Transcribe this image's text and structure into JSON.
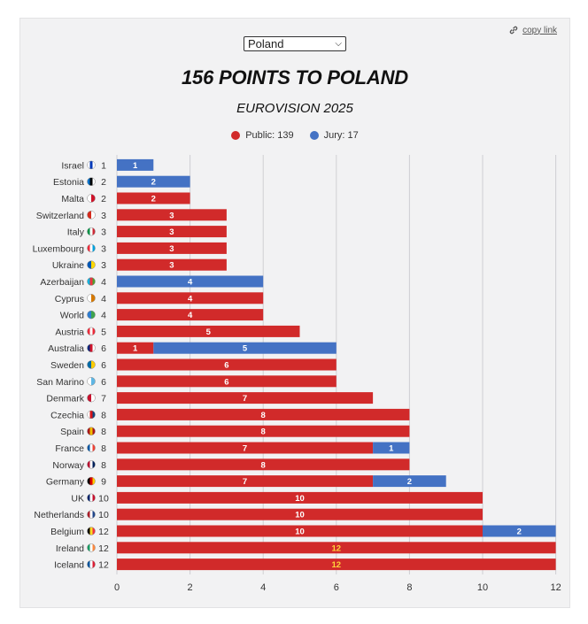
{
  "copy_link": "copy link",
  "selector": {
    "value": "Poland"
  },
  "colors": {
    "public": "#d12a2a",
    "jury": "#4472c4",
    "grid": "#cfcfd3",
    "highlight": "#ffd43b"
  },
  "chart_data": {
    "type": "bar",
    "orientation": "horizontal",
    "stacked": true,
    "title": "156 POINTS TO POLAND",
    "subtitle": "EUROVISION 2025",
    "legend": [
      {
        "name": "Public: 139",
        "color": "#d12a2a"
      },
      {
        "name": "Jury: 17",
        "color": "#4472c4"
      }
    ],
    "xlim": [
      0,
      12
    ],
    "xticks": [
      0,
      2,
      4,
      6,
      8,
      10,
      12
    ],
    "grid": true,
    "categories": [
      "Israel",
      "Estonia",
      "Malta",
      "Switzerland",
      "Italy",
      "Luxembourg",
      "Ukraine",
      "Azerbaijan",
      "Cyprus",
      "World",
      "Austria",
      "Australia",
      "Sweden",
      "San Marino",
      "Denmark",
      "Czechia",
      "Spain",
      "France",
      "Norway",
      "Germany",
      "UK",
      "Netherlands",
      "Belgium",
      "Ireland",
      "Iceland"
    ],
    "totals": [
      1,
      2,
      2,
      3,
      3,
      3,
      3,
      4,
      4,
      4,
      5,
      6,
      6,
      6,
      7,
      8,
      8,
      8,
      8,
      9,
      10,
      10,
      12,
      12,
      12
    ],
    "series": [
      {
        "name": "Public",
        "values": [
          0,
          0,
          2,
          3,
          3,
          3,
          3,
          0,
          4,
          4,
          5,
          1,
          6,
          6,
          7,
          8,
          8,
          7,
          8,
          7,
          10,
          10,
          10,
          12,
          12
        ]
      },
      {
        "name": "Jury",
        "values": [
          1,
          2,
          0,
          0,
          0,
          0,
          0,
          4,
          0,
          0,
          0,
          5,
          0,
          0,
          0,
          0,
          0,
          1,
          0,
          2,
          0,
          0,
          2,
          0,
          0
        ]
      }
    ],
    "flags": [
      [
        "#ffffff",
        "#0038b8",
        "#ffffff"
      ],
      [
        "#0072ce",
        "#000000",
        "#ffffff"
      ],
      [
        "#ffffff",
        "#cf142b"
      ],
      [
        "#d52b1e",
        "#ffffff"
      ],
      [
        "#009246",
        "#ffffff",
        "#ce2b37"
      ],
      [
        "#ed2939",
        "#ffffff",
        "#00a1de"
      ],
      [
        "#0057b7",
        "#ffd700"
      ],
      [
        "#00b5e2",
        "#ef3340",
        "#509e2f"
      ],
      [
        "#ffffff",
        "#d57800"
      ],
      [
        "#2e7dd1",
        "#3fa34d"
      ],
      [
        "#ed2939",
        "#ffffff",
        "#ed2939"
      ],
      [
        "#00247d",
        "#cf142b",
        "#ffffff"
      ],
      [
        "#006aa7",
        "#fecc00"
      ],
      [
        "#ffffff",
        "#5eb6e4"
      ],
      [
        "#c8102e",
        "#ffffff"
      ],
      [
        "#ffffff",
        "#d7141a",
        "#11457e"
      ],
      [
        "#aa151b",
        "#f1bf00",
        "#aa151b"
      ],
      [
        "#0055a4",
        "#ffffff",
        "#ef4135"
      ],
      [
        "#ba0c2f",
        "#ffffff",
        "#00205b"
      ],
      [
        "#000000",
        "#dd0000",
        "#ffce00"
      ],
      [
        "#012169",
        "#ffffff",
        "#c8102e"
      ],
      [
        "#ae1c28",
        "#ffffff",
        "#21468b"
      ],
      [
        "#000000",
        "#fdda24",
        "#ef3340"
      ],
      [
        "#169b62",
        "#ffffff",
        "#ff883e"
      ],
      [
        "#02529c",
        "#ffffff",
        "#dc1e35"
      ]
    ]
  }
}
